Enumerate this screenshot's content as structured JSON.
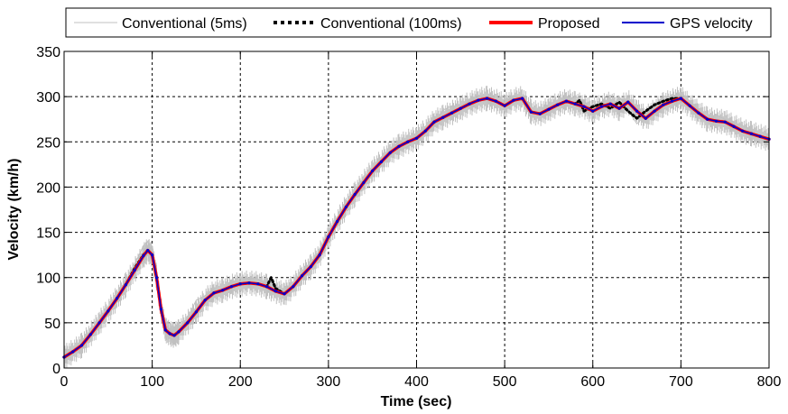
{
  "chart_data": {
    "type": "line",
    "xlabel": "Time (sec)",
    "ylabel": "Velocity (km/h)",
    "xlim": [
      0,
      800
    ],
    "ylim": [
      0,
      350
    ],
    "xticks": [
      0,
      100,
      200,
      300,
      400,
      500,
      600,
      700,
      800
    ],
    "yticks": [
      0,
      50,
      100,
      150,
      200,
      250,
      300,
      350
    ],
    "xtick_labels": [
      "0",
      "100",
      "200",
      "300",
      "400",
      "500",
      "600",
      "700",
      "800"
    ],
    "ytick_labels": [
      "0",
      "50",
      "100",
      "150",
      "200",
      "250",
      "300",
      "350"
    ],
    "grid": true,
    "legend_position": "top",
    "series": [
      {
        "name": "Conventional (5ms)",
        "color": "#c0c0c0",
        "style": "thin-noisy",
        "x": [
          0,
          10,
          20,
          30,
          40,
          50,
          60,
          70,
          80,
          90,
          95,
          100,
          105,
          110,
          115,
          120,
          125,
          130,
          140,
          150,
          160,
          170,
          180,
          190,
          200,
          210,
          220,
          230,
          240,
          250,
          260,
          270,
          280,
          290,
          300,
          310,
          320,
          330,
          340,
          350,
          360,
          370,
          380,
          390,
          400,
          410,
          420,
          430,
          440,
          450,
          460,
          470,
          480,
          490,
          500,
          510,
          520,
          530,
          540,
          550,
          560,
          570,
          580,
          590,
          600,
          610,
          620,
          630,
          640,
          650,
          660,
          670,
          680,
          690,
          700,
          710,
          720,
          730,
          740,
          750,
          760,
          770,
          780,
          790,
          800
        ],
        "y": [
          10,
          20,
          30,
          40,
          50,
          60,
          80,
          95,
          115,
          135,
          140,
          125,
          95,
          60,
          40,
          35,
          35,
          45,
          55,
          75,
          80,
          85,
          88,
          95,
          95,
          100,
          98,
          92,
          85,
          80,
          92,
          100,
          115,
          130,
          150,
          165,
          180,
          190,
          205,
          215,
          225,
          235,
          240,
          245,
          255,
          265,
          270,
          285,
          290,
          290,
          295,
          300,
          300,
          295,
          290,
          300,
          300,
          285,
          280,
          285,
          290,
          295,
          300,
          295,
          280,
          290,
          285,
          300,
          285,
          270,
          280,
          290,
          300,
          300,
          305,
          295,
          285,
          275,
          280,
          275,
          270,
          268,
          262,
          255,
          245
        ]
      },
      {
        "name": "Conventional (100ms)",
        "color": "#000000",
        "style": "dotted",
        "x": [
          0,
          10,
          20,
          30,
          40,
          50,
          60,
          70,
          80,
          90,
          95,
          100,
          105,
          110,
          115,
          120,
          125,
          130,
          140,
          150,
          160,
          170,
          180,
          190,
          200,
          210,
          220,
          230,
          235,
          240,
          250,
          260,
          270,
          280,
          290,
          300,
          310,
          320,
          330,
          340,
          350,
          360,
          370,
          380,
          390,
          400,
          410,
          420,
          430,
          440,
          450,
          460,
          470,
          480,
          490,
          500,
          510,
          520,
          530,
          540,
          550,
          560,
          570,
          580,
          585,
          590,
          600,
          610,
          620,
          630,
          640,
          650,
          660,
          670,
          680,
          690,
          700,
          710,
          720,
          730,
          740,
          750,
          760,
          770,
          780,
          790,
          800
        ],
        "y": [
          12,
          18,
          25,
          37,
          50,
          63,
          77,
          92,
          110,
          125,
          130,
          125,
          100,
          65,
          42,
          38,
          36,
          40,
          50,
          62,
          75,
          83,
          86,
          90,
          93,
          94,
          93,
          90,
          100,
          88,
          82,
          90,
          102,
          112,
          125,
          145,
          162,
          178,
          192,
          205,
          218,
          228,
          238,
          245,
          250,
          254,
          262,
          272,
          277,
          282,
          287,
          292,
          296,
          298,
          295,
          290,
          296,
          298,
          283,
          281,
          286,
          291,
          295,
          292,
          296,
          284,
          289,
          292,
          287,
          294,
          284,
          276,
          284,
          291,
          295,
          298,
          298,
          290,
          282,
          275,
          273,
          272,
          267,
          262,
          259,
          256,
          253
        ]
      },
      {
        "name": "Proposed",
        "color": "#ff0000",
        "style": "thick",
        "x": [
          0,
          10,
          20,
          30,
          40,
          50,
          60,
          70,
          80,
          90,
          95,
          100,
          105,
          110,
          115,
          120,
          125,
          130,
          140,
          150,
          160,
          170,
          180,
          190,
          200,
          210,
          220,
          230,
          240,
          250,
          260,
          270,
          280,
          290,
          300,
          310,
          320,
          330,
          340,
          350,
          360,
          370,
          380,
          390,
          400,
          410,
          420,
          430,
          440,
          450,
          460,
          470,
          480,
          490,
          500,
          510,
          520,
          530,
          540,
          550,
          560,
          570,
          580,
          590,
          600,
          610,
          620,
          630,
          640,
          650,
          660,
          670,
          680,
          690,
          700,
          710,
          720,
          730,
          740,
          750,
          760,
          770,
          780,
          790,
          800
        ],
        "y": [
          12,
          18,
          25,
          37,
          50,
          63,
          77,
          92,
          108,
          124,
          130,
          125,
          100,
          65,
          42,
          38,
          36,
          40,
          50,
          62,
          75,
          83,
          86,
          90,
          93,
          94,
          93,
          90,
          85,
          82,
          90,
          102,
          112,
          125,
          145,
          162,
          178,
          192,
          205,
          218,
          228,
          238,
          245,
          250,
          254,
          262,
          272,
          277,
          282,
          287,
          292,
          296,
          298,
          295,
          290,
          296,
          298,
          283,
          281,
          286,
          291,
          295,
          292,
          289,
          284,
          289,
          292,
          287,
          294,
          284,
          276,
          284,
          291,
          295,
          298,
          290,
          282,
          275,
          273,
          272,
          267,
          262,
          259,
          256,
          253
        ]
      },
      {
        "name": "GPS velocity",
        "color": "#0000cc",
        "style": "solid",
        "x": [
          0,
          10,
          20,
          30,
          40,
          50,
          60,
          70,
          80,
          90,
          95,
          100,
          105,
          110,
          115,
          120,
          125,
          130,
          140,
          150,
          160,
          170,
          180,
          190,
          200,
          210,
          220,
          230,
          240,
          250,
          260,
          270,
          280,
          290,
          300,
          310,
          320,
          330,
          340,
          350,
          360,
          370,
          380,
          390,
          400,
          410,
          420,
          430,
          440,
          450,
          460,
          470,
          480,
          490,
          500,
          510,
          520,
          530,
          540,
          550,
          560,
          570,
          580,
          590,
          600,
          610,
          620,
          630,
          640,
          650,
          660,
          670,
          680,
          690,
          700,
          710,
          720,
          730,
          740,
          750,
          760,
          770,
          780,
          790,
          800
        ],
        "y": [
          12,
          18,
          25,
          37,
          50,
          63,
          77,
          92,
          108,
          124,
          130,
          125,
          100,
          65,
          42,
          38,
          36,
          40,
          50,
          62,
          75,
          83,
          86,
          90,
          93,
          94,
          93,
          90,
          85,
          82,
          90,
          102,
          112,
          125,
          145,
          162,
          178,
          192,
          205,
          218,
          228,
          238,
          245,
          250,
          254,
          262,
          272,
          277,
          282,
          287,
          292,
          296,
          298,
          295,
          290,
          296,
          298,
          283,
          281,
          286,
          291,
          295,
          292,
          289,
          284,
          289,
          292,
          287,
          294,
          284,
          276,
          284,
          291,
          295,
          298,
          290,
          282,
          275,
          273,
          272,
          267,
          262,
          259,
          256,
          253
        ]
      }
    ]
  }
}
